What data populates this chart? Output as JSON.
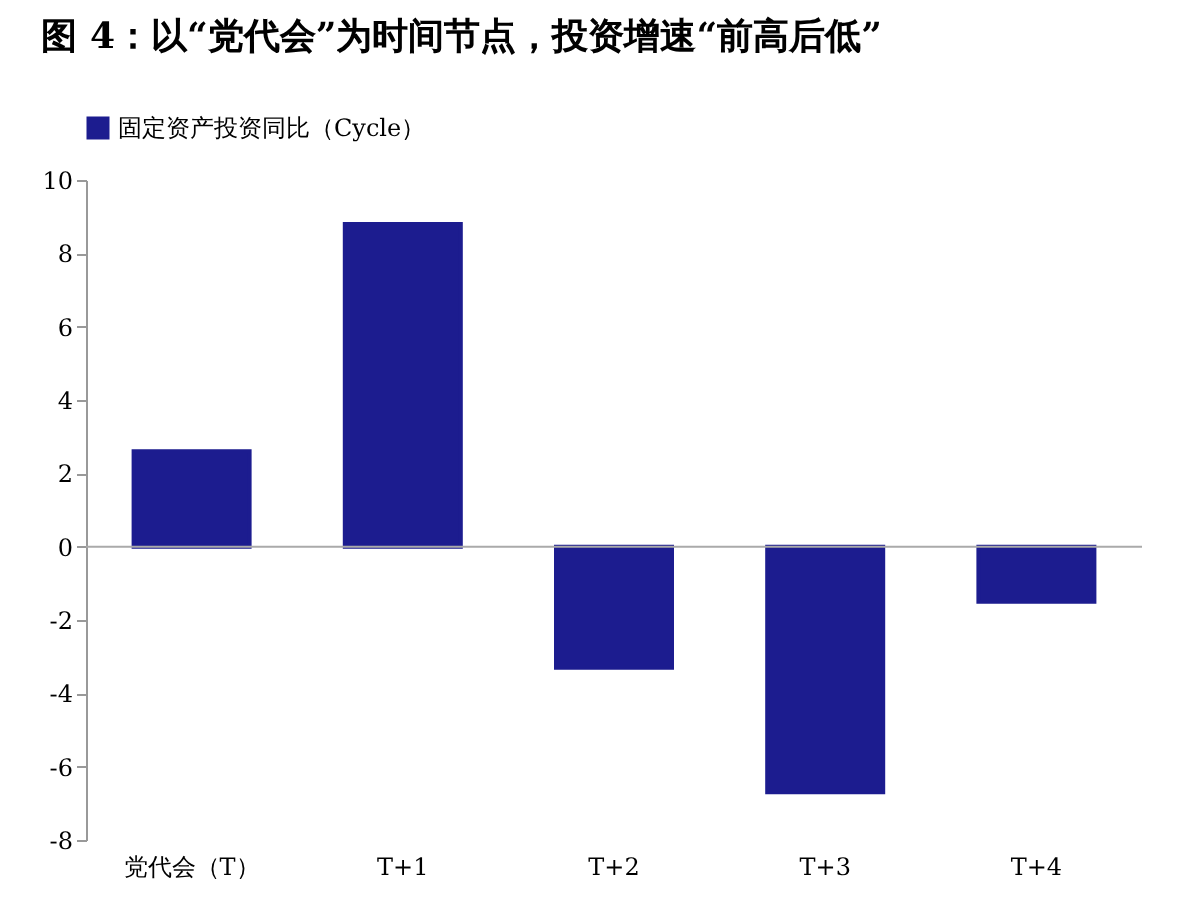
{
  "chart_data": {
    "type": "bar",
    "title": "图 4：以“党代会”为时间节点，投资增速“前高后低”",
    "categories": [
      "党代会（T）",
      "T+1",
      "T+2",
      "T+3",
      "T+4"
    ],
    "series": [
      {
        "name": "固定资产投资同比（Cycle）",
        "color": "#1c1c8f",
        "values": [
          2.6,
          8.8,
          -3.3,
          -6.7,
          -1.5
        ]
      }
    ],
    "ylim": [
      -8,
      10
    ],
    "yticks": [
      -8,
      -6,
      -4,
      -2,
      0,
      2,
      4,
      6,
      8,
      10
    ],
    "grid": false,
    "ref_lines": [
      {
        "axis": "y",
        "value": 0,
        "color": "#aaaaaa"
      }
    ],
    "legend": "top"
  }
}
